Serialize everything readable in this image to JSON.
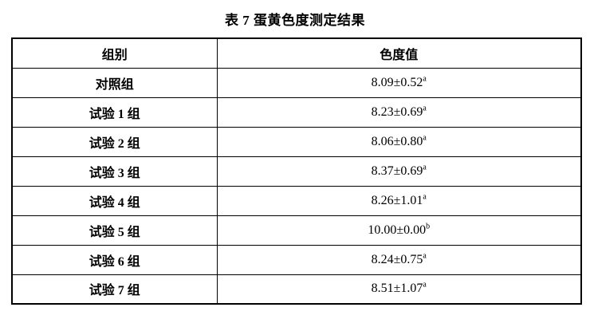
{
  "title": "表 7 蛋黄色度测定结果",
  "table": {
    "headers": {
      "group": "组别",
      "value": "色度值"
    },
    "rows": [
      {
        "group": "对照组",
        "value": "8.09±0.52",
        "sup": "a"
      },
      {
        "group": "试验 1 组",
        "value": "8.23±0.69",
        "sup": "a"
      },
      {
        "group": "试验 2 组",
        "value": "8.06±0.80",
        "sup": "a"
      },
      {
        "group": "试验 3 组",
        "value": "8.37±0.69",
        "sup": "a"
      },
      {
        "group": "试验 4 组",
        "value": "8.26±1.01",
        "sup": "a"
      },
      {
        "group": "试验 5 组",
        "value": "10.00±0.00",
        "sup": "b"
      },
      {
        "group": "试验 6 组",
        "value": "8.24±0.75",
        "sup": "a"
      },
      {
        "group": "试验 7 组",
        "value": "8.51±1.07",
        "sup": "a"
      }
    ]
  },
  "colors": {
    "text": "#000000",
    "border": "#000000",
    "background": "#ffffff"
  }
}
